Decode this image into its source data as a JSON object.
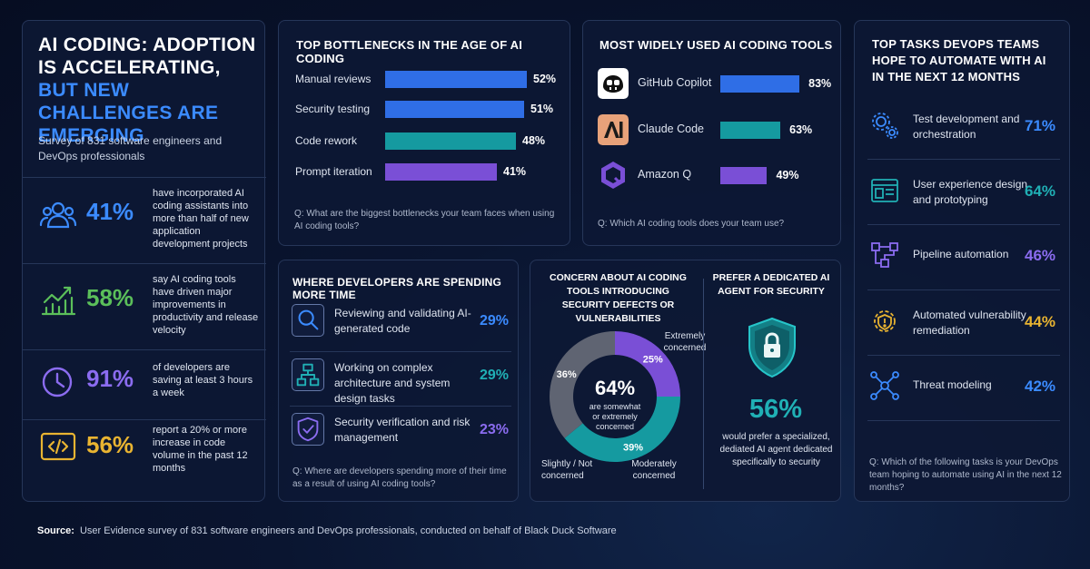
{
  "colors": {
    "blue": "#2f6ee6",
    "teal": "#159aa0",
    "purple": "#7a4fd6",
    "green": "#5bbf5a",
    "gold": "#e9b431",
    "gray": "#6b7280"
  },
  "intro": {
    "title_white": "AI CODING: ADOPTION IS ACCELERATING,",
    "title_blue": "BUT NEW CHALLENGES ARE EMERGING",
    "subtitle": "Survey of 831 software engineers and DevOps professionals",
    "stats": [
      {
        "icon": "users-icon",
        "value": "41%",
        "text": "have incorporated AI coding assistants into more than half of new application development projects"
      },
      {
        "icon": "growth-chart-icon",
        "value": "58%",
        "text": "say AI coding tools have driven major improvements in productivity and release velocity"
      },
      {
        "icon": "clock-icon",
        "value": "91%",
        "text": "of developers are saving at least 3 hours a week"
      },
      {
        "icon": "code-icon",
        "value": "56%",
        "text": "report a 20% or more increase in code volume in the past 12 months"
      }
    ]
  },
  "bottlenecks": {
    "title": "TOP BOTTLENECKS IN THE AGE OF AI CODING",
    "items": [
      {
        "label": "Manual reviews",
        "value": 52,
        "display": "52%"
      },
      {
        "label": "Security testing",
        "value": 51,
        "display": "51%"
      },
      {
        "label": "Code rework",
        "value": 48,
        "display": "48%"
      },
      {
        "label": "Prompt iteration",
        "value": 41,
        "display": "41%"
      }
    ],
    "question": "Q: What are the biggest bottlenecks your team faces when using AI coding tools?"
  },
  "tools": {
    "title": "MOST WIDELY USED AI CODING TOOLS",
    "items": [
      {
        "icon": "github-copilot-icon",
        "label": "GitHub Copilot",
        "value": 83,
        "display": "83%"
      },
      {
        "icon": "claude-icon",
        "label": "Claude Code",
        "value": 63,
        "display": "63%"
      },
      {
        "icon": "amazon-q-icon",
        "label": "Amazon Q",
        "value": 49,
        "display": "49%"
      }
    ],
    "question": "Q: Which AI coding tools does your team use?"
  },
  "time_spent": {
    "title": "WHERE DEVELOPERS ARE SPENDING MORE TIME",
    "items": [
      {
        "icon": "magnifier-icon",
        "text": "Reviewing and validating AI-generated code",
        "value": "29%"
      },
      {
        "icon": "architecture-icon",
        "text": "Working on complex architecture and system design tasks",
        "value": "29%"
      },
      {
        "icon": "shield-check-icon",
        "text": "Security verification and risk management",
        "value": "23%"
      }
    ],
    "question": "Q: Where are developers spending more of their time as a result of using AI coding tools?"
  },
  "concern": {
    "title": "CONCERN ABOUT AI CODING TOOLS INTRODUCING SECURITY DEFECTS OR VULNERABILITIES",
    "center_value": "64%",
    "center_text": "are somewhat or extremely concerned",
    "segments": [
      {
        "label": "Extremely concerned",
        "value": 25,
        "display": "25%"
      },
      {
        "label": "Moderately concerned",
        "value": 39,
        "display": "39%"
      },
      {
        "label": "Slightly / Not concerned",
        "value": 36,
        "display": "36%"
      }
    ]
  },
  "dedicated": {
    "title": "PREFER A DEDICATED AI AGENT FOR SECURITY",
    "value": "56%",
    "text": "would prefer a specialized, dediated AI agent dedicated specifically to security"
  },
  "automate": {
    "title": "TOP TASKS DEVOPS TEAMS HOPE TO AUTOMATE WITH AI IN THE NEXT 12 MONTHS",
    "items": [
      {
        "icon": "gears-icon",
        "text": "Test development and orchestration",
        "value": "71%"
      },
      {
        "icon": "ux-design-icon",
        "text": "User experience design and prototyping",
        "value": "64%"
      },
      {
        "icon": "pipeline-icon",
        "text": "Pipeline automation",
        "value": "46%"
      },
      {
        "icon": "vulnerability-gear-icon",
        "text": "Automated vulnerability remediation",
        "value": "44%"
      },
      {
        "icon": "network-nodes-icon",
        "text": "Threat modeling",
        "value": "42%"
      }
    ],
    "question": "Q: Which of the following tasks is your DevOps team hoping to automate using AI in the next 12 months?"
  },
  "source": {
    "label": "Source:",
    "text": "User Evidence survey of 831 software engineers and DevOps professionals, conducted on behalf of Black Duck Software"
  }
}
